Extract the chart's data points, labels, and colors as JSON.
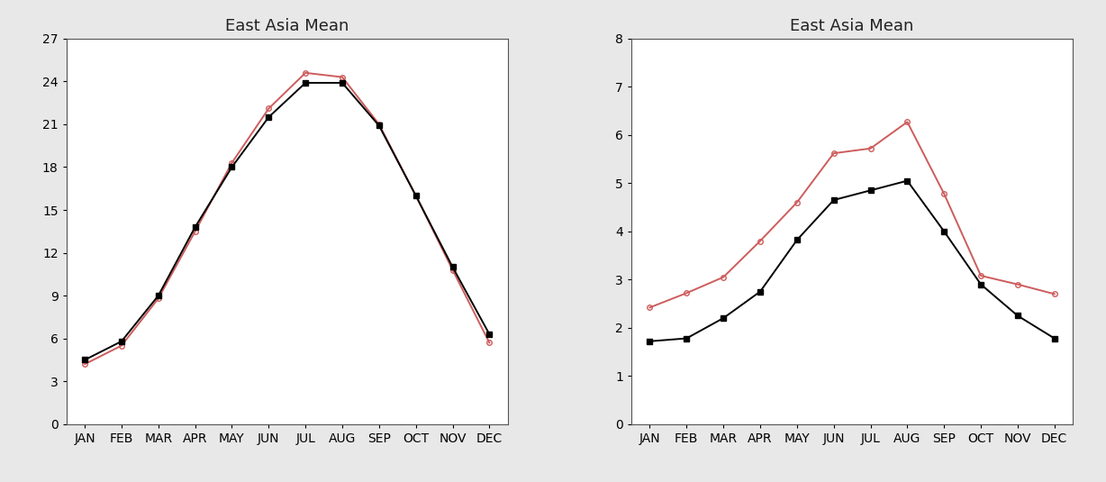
{
  "months": [
    "JAN",
    "FEB",
    "MAR",
    "APR",
    "MAY",
    "JUN",
    "JUL",
    "AUG",
    "SEP",
    "OCT",
    "NOV",
    "DEC"
  ],
  "left_title": "East Asia Mean",
  "right_title": "East Asia Mean",
  "left_black": [
    4.5,
    5.8,
    9.0,
    13.8,
    18.0,
    21.5,
    23.9,
    23.9,
    20.9,
    16.0,
    11.0,
    6.3
  ],
  "left_red": [
    4.2,
    5.5,
    8.8,
    13.5,
    18.3,
    22.1,
    24.6,
    24.3,
    21.0,
    16.0,
    10.8,
    5.7
  ],
  "right_black": [
    1.72,
    1.78,
    2.2,
    2.75,
    3.82,
    4.65,
    4.85,
    5.05,
    4.0,
    2.9,
    2.25,
    1.78
  ],
  "right_red": [
    2.42,
    2.72,
    3.05,
    3.8,
    4.6,
    5.62,
    5.72,
    6.27,
    4.78,
    3.08,
    2.9,
    2.7
  ],
  "left_ylim": [
    0,
    27
  ],
  "left_yticks": [
    0,
    3,
    6,
    9,
    12,
    15,
    18,
    21,
    24,
    27
  ],
  "right_ylim": [
    0,
    8
  ],
  "right_yticks": [
    0,
    1,
    2,
    3,
    4,
    5,
    6,
    7,
    8
  ],
  "black_color": "#000000",
  "red_color": "#cd5c5c",
  "fig_facecolor": "#e8e8e8",
  "axes_facecolor": "#ffffff",
  "title_fontsize": 13,
  "tick_fontsize": 10,
  "linewidth": 1.4,
  "marker_black": "s",
  "marker_red": "o",
  "marker_size_black": 5,
  "marker_size_red": 4
}
